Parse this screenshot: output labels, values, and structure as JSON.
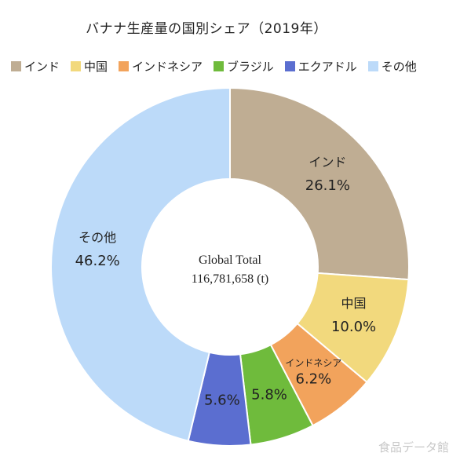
{
  "chart_data": {
    "type": "pie",
    "title": "バナナ生産量の国別シェア（2019年）",
    "center_label_line1": "Global Total",
    "center_label_line2": "116,781,658 (t)",
    "legend_position": "top",
    "slices": [
      {
        "label": "インド",
        "value": 26.1,
        "display": "26.1%",
        "color": "#bfad93",
        "label_text": "インド",
        "label_size": "large"
      },
      {
        "label": "中国",
        "value": 10.0,
        "display": "10.0%",
        "color": "#f2d97d",
        "label_text": "中国",
        "label_size": "large"
      },
      {
        "label": "インドネシア",
        "value": 6.2,
        "display": "6.2%",
        "color": "#f2a35c",
        "label_text": "インドネシア",
        "label_size": "small"
      },
      {
        "label": "ブラジル",
        "value": 5.8,
        "display": "5.8%",
        "color": "#6fbb3c",
        "label_text": "",
        "label_size": "large"
      },
      {
        "label": "エクアドル",
        "value": 5.6,
        "display": "5.6%",
        "color": "#5b6ed0",
        "label_text": "",
        "label_size": "large"
      },
      {
        "label": "その他",
        "value": 46.2,
        "display": "46.2%",
        "color": "#bcdaf9",
        "label_text": "その他",
        "label_size": "large"
      }
    ]
  },
  "watermark": "食品データ館"
}
